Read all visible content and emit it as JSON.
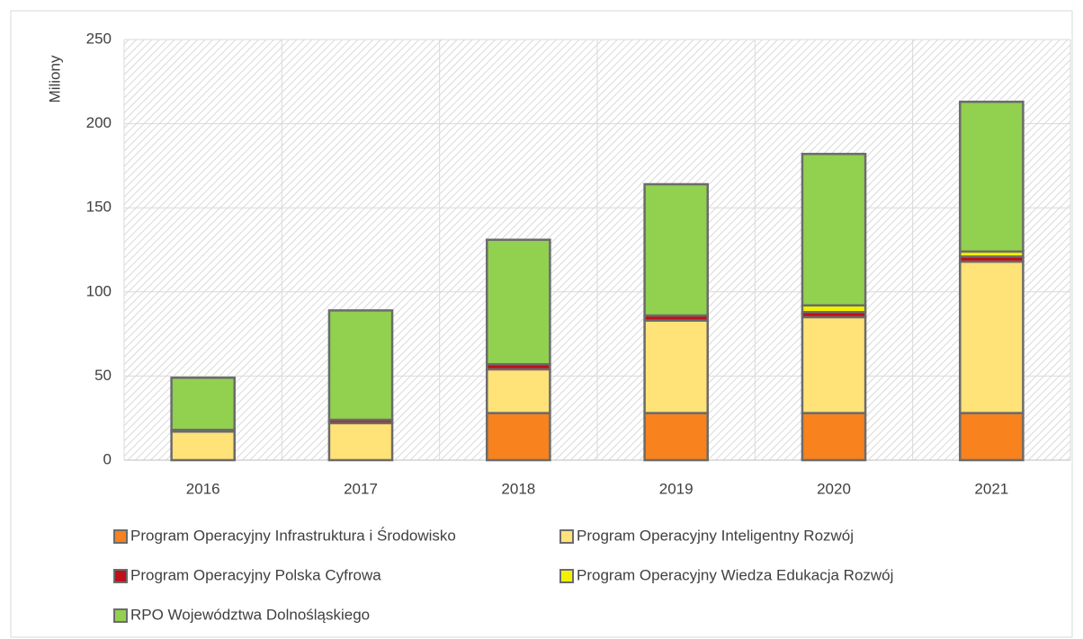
{
  "chart_data": {
    "type": "bar",
    "stacked": true,
    "y_label": "Miliony",
    "categories": [
      "2016",
      "2017",
      "2018",
      "2019",
      "2020",
      "2021"
    ],
    "series": [
      {
        "name": "Program Operacyjny Infrastruktura i Środowisko",
        "color": "#f7821e",
        "values": [
          0,
          0,
          28,
          28,
          28,
          28
        ]
      },
      {
        "name": "Program Operacyjny Inteligentny Rozwój",
        "color": "#ffe278",
        "values": [
          17,
          22,
          26,
          55,
          57,
          90
        ]
      },
      {
        "name": "Program Operacyjny Polska Cyfrowa",
        "color": "#c0101a",
        "values": [
          1,
          2,
          3,
          3,
          3,
          3
        ]
      },
      {
        "name": "Program Operacyjny Wiedza Edukacja Rozwój",
        "color": "#f2f200",
        "values": [
          0,
          0,
          0,
          0,
          4,
          3
        ]
      },
      {
        "name": "RPO Województwa Dolnośląskiego",
        "color": "#92d050",
        "values": [
          31,
          65,
          74,
          78,
          90,
          89
        ]
      }
    ],
    "ylim": [
      0,
      250
    ],
    "yticks": [
      0,
      50,
      100,
      150,
      200,
      250
    ],
    "grid": true,
    "legend": "bottom"
  }
}
